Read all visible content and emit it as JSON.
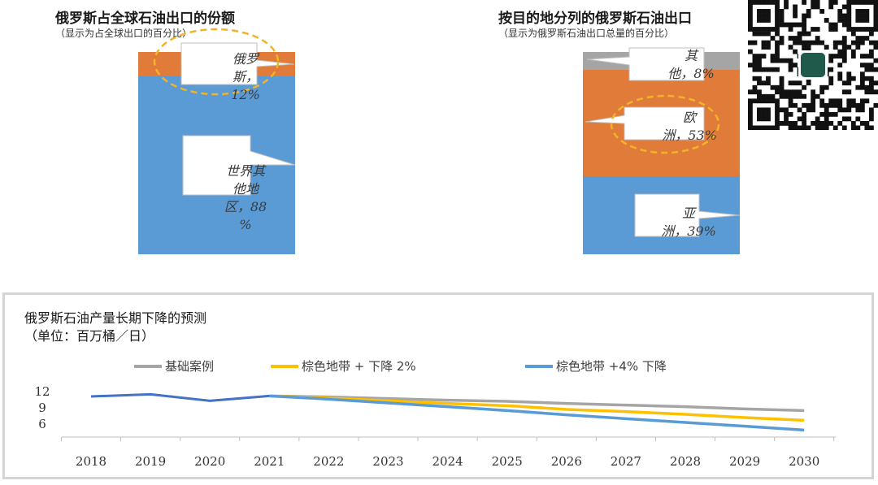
{
  "chart_data": [
    {
      "type": "bar",
      "stacked": true,
      "title": "俄罗斯占全球石油出口的份额",
      "subtitle": "（显示为占全球出口的百分比）",
      "segments": [
        {
          "label_lines": [
            "世界其",
            "他地",
            "区，88",
            "%"
          ],
          "value": 88,
          "color": "#5b9bd5"
        },
        {
          "label_lines": [
            "俄罗",
            "斯，",
            "12%"
          ],
          "value": 12,
          "color": "#e07b39"
        }
      ]
    },
    {
      "type": "bar",
      "stacked": true,
      "title": "按目的地分列的俄罗斯石油出口",
      "subtitle": "（显示为俄罗斯石油出口总量的百分比）",
      "segments": [
        {
          "label_lines": [
            "亚",
            "洲，39%"
          ],
          "value": 39,
          "color": "#5b9bd5"
        },
        {
          "label_lines": [
            "欧",
            "洲，53%"
          ],
          "value": 53,
          "color": "#e07b39"
        },
        {
          "label_lines": [
            "其",
            "他，8%"
          ],
          "value": 8,
          "color": "#a5a5a5"
        }
      ]
    },
    {
      "type": "line",
      "title": "俄罗斯石油产量长期下降的预测",
      "subtitle": "（单位：百万桶／日）",
      "x": [
        "2018",
        "2019",
        "2020",
        "2021",
        "2022",
        "2023",
        "2024",
        "2025",
        "2026",
        "2027",
        "2028",
        "2029",
        "2030"
      ],
      "y_ticks": [
        "12",
        "9",
        "6"
      ],
      "ylim": [
        3.6,
        13.0
      ],
      "history": {
        "color": "#4472c4",
        "values": [
          11.1,
          11.5,
          10.3,
          11.2
        ]
      },
      "series": [
        {
          "name": "基础案例",
          "color": "#a5a5a5",
          "values": [
            null,
            null,
            null,
            11.2,
            11.0,
            10.7,
            10.4,
            10.2,
            9.8,
            9.5,
            9.2,
            8.8,
            8.5
          ]
        },
        {
          "name": "棕色地带 + 下降 2%",
          "color": "#ffc000",
          "values": [
            null,
            null,
            null,
            11.2,
            10.8,
            10.3,
            9.8,
            9.4,
            8.7,
            8.3,
            7.8,
            7.2,
            6.7
          ]
        },
        {
          "name": "棕色地带 +4% 下降",
          "color": "#5b9bd5",
          "values": [
            null,
            null,
            null,
            11.2,
            10.6,
            9.9,
            9.2,
            8.5,
            7.7,
            7.0,
            6.3,
            5.6,
            4.9
          ]
        }
      ]
    }
  ]
}
